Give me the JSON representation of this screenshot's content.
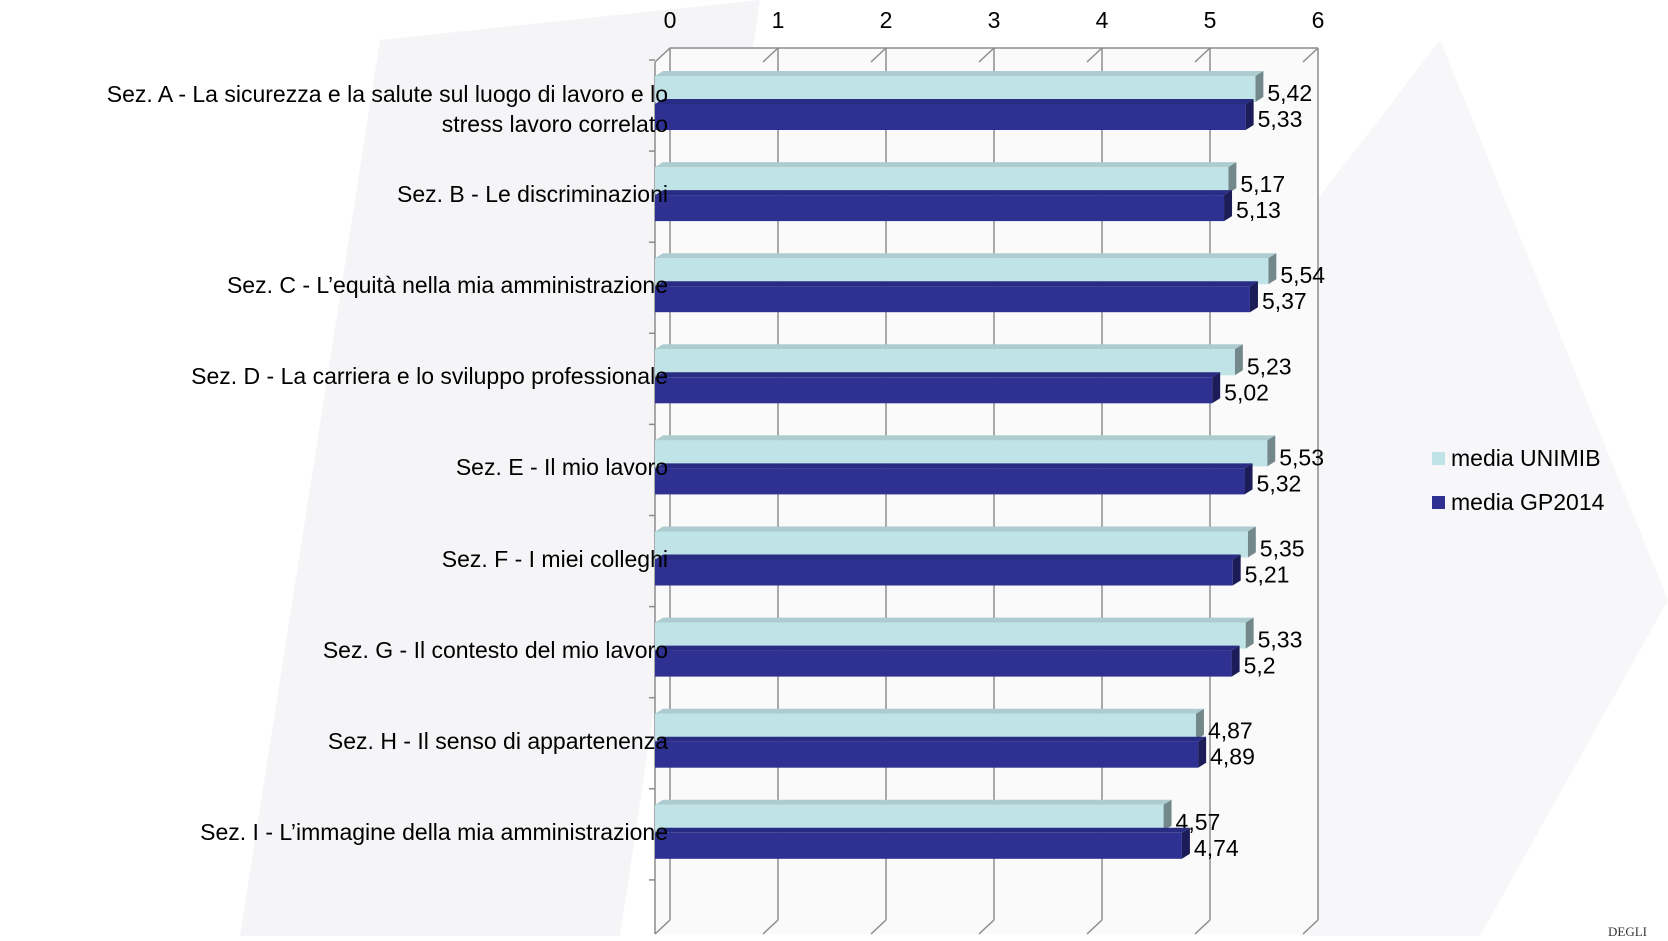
{
  "chart_data": {
    "type": "bar",
    "orientation": "horizontal",
    "title": "",
    "xlabel": "",
    "ylabel": "",
    "xlim": [
      0,
      6
    ],
    "x_ticks": [
      "0",
      "1",
      "2",
      "3",
      "4",
      "5",
      "6"
    ],
    "grid": true,
    "legend_position": "right",
    "categories": [
      {
        "lines": [
          "Sez. A - La sicurezza e la salute sul luogo di lavoro e lo",
          "stress lavoro correlato"
        ]
      },
      {
        "lines": [
          "Sez. B - Le discriminazioni"
        ]
      },
      {
        "lines": [
          "Sez. C - L’equità nella mia amministrazione"
        ]
      },
      {
        "lines": [
          "Sez. D - La carriera e lo sviluppo professionale"
        ]
      },
      {
        "lines": [
          "Sez. E - Il mio lavoro"
        ]
      },
      {
        "lines": [
          "Sez. F - I miei colleghi"
        ]
      },
      {
        "lines": [
          "Sez. G - Il contesto del mio lavoro"
        ]
      },
      {
        "lines": [
          "Sez. H - Il senso di appartenenza"
        ]
      },
      {
        "lines": [
          "Sez. I - L’immagine della mia amministrazione"
        ]
      }
    ],
    "series": [
      {
        "name": "media UNIMIB",
        "color": "#bfe3e6",
        "values": [
          5.42,
          5.17,
          5.54,
          5.23,
          5.53,
          5.35,
          5.33,
          4.87,
          4.57
        ],
        "labels": [
          "5,42",
          "5,17",
          "5,54",
          "5,23",
          "5,53",
          "5,35",
          "5,33",
          "4,87",
          "4,57"
        ]
      },
      {
        "name": "media GP2014",
        "color": "#2e3192",
        "values": [
          5.33,
          5.13,
          5.37,
          5.02,
          5.32,
          5.21,
          5.2,
          4.89,
          4.74
        ],
        "labels": [
          "5,33",
          "5,13",
          "5,37",
          "5,02",
          "5,32",
          "5,21",
          "5,2",
          "4,89",
          "4,74"
        ]
      }
    ]
  },
  "footer": {
    "logo_text": "DEGLI"
  }
}
